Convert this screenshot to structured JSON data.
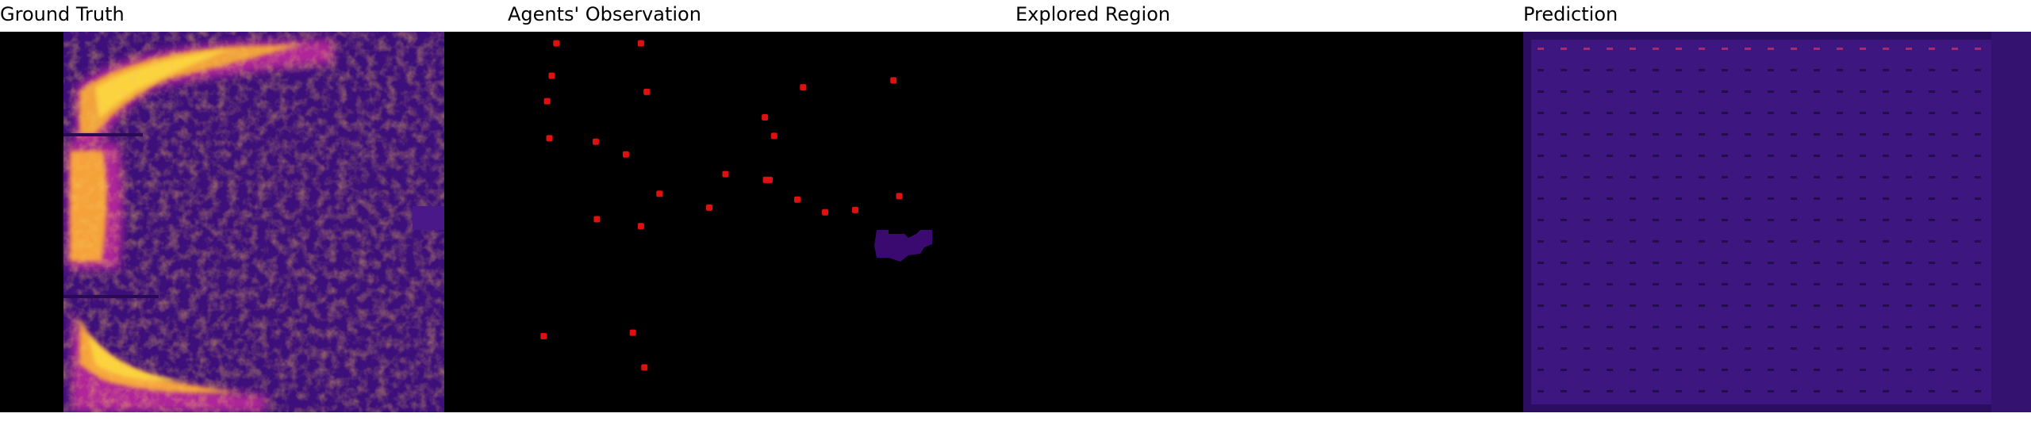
{
  "titles": {
    "ground_truth": "Ground Truth",
    "observation": "Agents' Observation",
    "explored": "Explored Region",
    "prediction": "Prediction"
  },
  "colors": {
    "background": "#000000",
    "heat_low": "#3a0a78",
    "heat_mid": "#b0259a",
    "heat_high": "#fbd43c",
    "agent_marker": "#e01010",
    "explored": "#ffffff",
    "explored_observed": "#3a0a70",
    "prediction_base": "#3d1680"
  },
  "agent_count": 26
}
